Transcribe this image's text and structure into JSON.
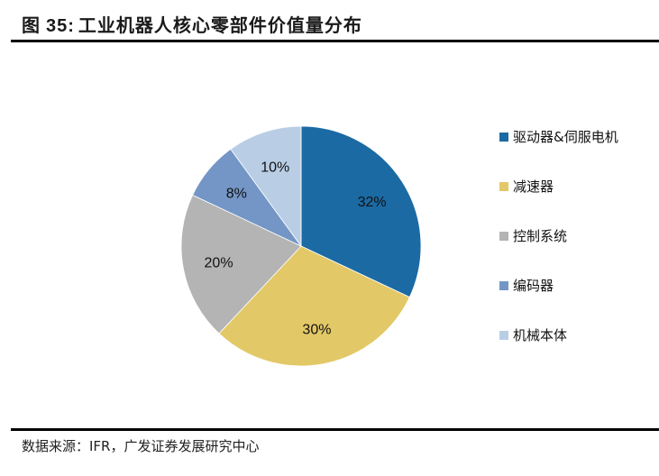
{
  "title": {
    "prefix": "图",
    "number": "35:",
    "text": "工业机器人核心零部件价值量分布"
  },
  "source": "数据来源：IFR，广发证券发展研究中心",
  "chart_data": {
    "type": "pie",
    "title": "图 35: 工业机器人核心零部件价值量分布",
    "categories": [
      "驱动器&伺服电机",
      "减速器",
      "控制系统",
      "编码器",
      "机械本体"
    ],
    "values": [
      32,
      30,
      20,
      8,
      10
    ],
    "labels": [
      "32%",
      "30%",
      "20%",
      "8%",
      "10%"
    ],
    "colors": [
      "#1B6AA3",
      "#E3C867",
      "#B4B4B4",
      "#7396C6",
      "#B9CEE5"
    ],
    "start_angle": "12 o'clock",
    "direction": "clockwise",
    "legend_position": "right"
  },
  "legend": [
    {
      "label": "驱动器&伺服电机",
      "color": "#1B6AA3"
    },
    {
      "label": "减速器",
      "color": "#E3C867"
    },
    {
      "label": "控制系统",
      "color": "#B4B4B4"
    },
    {
      "label": "编码器",
      "color": "#7396C6"
    },
    {
      "label": "机械本体",
      "color": "#B9CEE5"
    }
  ]
}
